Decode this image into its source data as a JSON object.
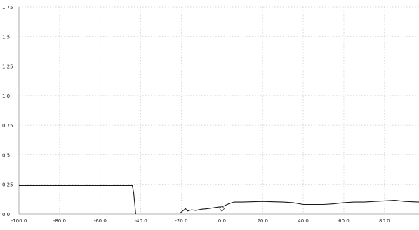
{
  "chart_data": {
    "type": "line",
    "title": "",
    "xlabel": "",
    "ylabel": "",
    "xlim": [
      -100,
      97
    ],
    "ylim": [
      0,
      1.75
    ],
    "grid": true,
    "x_ticks": [
      -100,
      -80,
      -60,
      -40,
      -20,
      0,
      20,
      40,
      60,
      80
    ],
    "x_tick_labels": [
      "-100.0",
      "-80.0",
      "-60.0",
      "-40.0",
      "-20.0",
      "0.0",
      "20.0",
      "40.0",
      "60.0",
      "80.0"
    ],
    "y_ticks": [
      0,
      0.25,
      0.5,
      0.75,
      1.0,
      1.25,
      1.5,
      1.75
    ],
    "y_tick_labels": [
      "0.0",
      "0.25",
      "0.5",
      "0.75",
      "1.0",
      "1.25",
      "1.5",
      "1.75"
    ],
    "series": [
      {
        "values_segments": [
          [
            [
              -100,
              0.24
            ],
            [
              -80,
              0.24
            ],
            [
              -60,
              0.24
            ],
            [
              -50,
              0.24
            ],
            [
              -44.2,
              0.24
            ],
            [
              -43.5,
              0.18
            ],
            [
              -42.5,
              0
            ]
          ],
          [
            [
              -20.5,
              0.01
            ],
            [
              -19,
              0.03
            ],
            [
              -18,
              0.045
            ],
            [
              -17,
              0.025
            ],
            [
              -15,
              0.035
            ],
            [
              -13,
              0.03
            ],
            [
              -10,
              0.04
            ],
            [
              -7,
              0.045
            ],
            [
              -5,
              0.05
            ],
            [
              -3,
              0.055
            ],
            [
              -1,
              0.06
            ],
            [
              0,
              0.06
            ],
            [
              2,
              0.075
            ],
            [
              4,
              0.09
            ],
            [
              6,
              0.1
            ],
            [
              10,
              0.1
            ],
            [
              20,
              0.105
            ],
            [
              30,
              0.1
            ],
            [
              35,
              0.095
            ],
            [
              40,
              0.08
            ],
            [
              45,
              0.08
            ],
            [
              50,
              0.08
            ],
            [
              55,
              0.085
            ],
            [
              60,
              0.095
            ],
            [
              65,
              0.1
            ],
            [
              70,
              0.1
            ],
            [
              75,
              0.105
            ],
            [
              80,
              0.11
            ],
            [
              85,
              0.115
            ],
            [
              90,
              0.105
            ],
            [
              97,
              0.1
            ]
          ]
        ]
      }
    ],
    "markers": [
      {
        "x": 0,
        "y": 0.045,
        "shape": "diamond"
      }
    ],
    "colors": {
      "line": "#1a1a1a",
      "grid": "#c8c8c8",
      "background": "#ffffff"
    }
  }
}
